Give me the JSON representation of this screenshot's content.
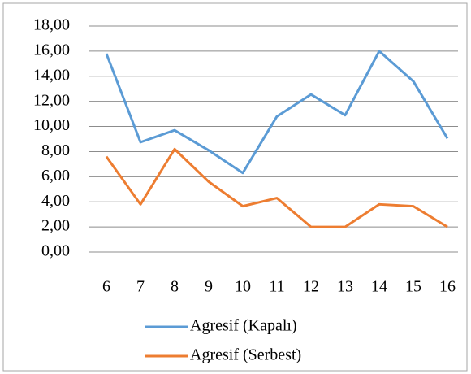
{
  "chart_data": {
    "type": "line",
    "categories": [
      "6",
      "7",
      "8",
      "9",
      "10",
      "11",
      "12",
      "13",
      "14",
      "15",
      "16"
    ],
    "series": [
      {
        "name": "Agresif (Kapalı)",
        "color": "#5b9bd5",
        "values": [
          15.8,
          8.75,
          9.7,
          8.1,
          6.3,
          10.8,
          12.55,
          10.9,
          16.0,
          13.6,
          9.05
        ]
      },
      {
        "name": "Agresif (Serbest)",
        "color": "#ed7d31",
        "values": [
          7.6,
          3.8,
          8.2,
          5.6,
          3.65,
          4.3,
          2.0,
          2.0,
          3.8,
          3.65,
          2.0
        ]
      }
    ],
    "ylim": [
      0,
      18
    ],
    "yticks": [
      {
        "value": 0,
        "label": "0,00"
      },
      {
        "value": 2,
        "label": "2,00"
      },
      {
        "value": 4,
        "label": "4,00"
      },
      {
        "value": 6,
        "label": "6,00"
      },
      {
        "value": 8,
        "label": "8,00"
      },
      {
        "value": 10,
        "label": "10,00"
      },
      {
        "value": 12,
        "label": "12,00"
      },
      {
        "value": 14,
        "label": "14,00"
      },
      {
        "value": 16,
        "label": "16,00"
      },
      {
        "value": 18,
        "label": "18,00"
      }
    ],
    "grid": true
  }
}
